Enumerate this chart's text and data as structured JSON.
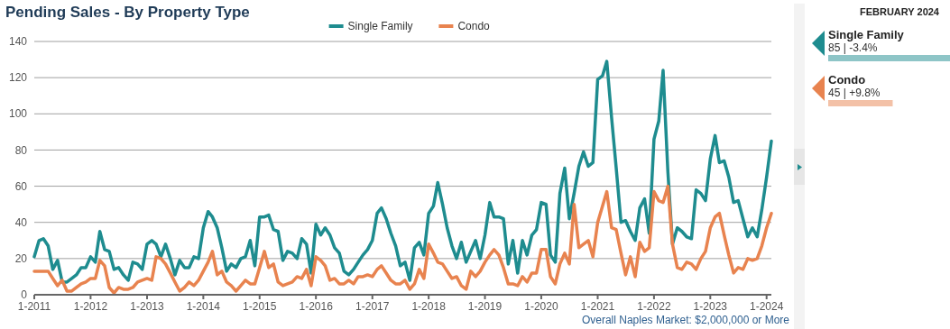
{
  "chart_data": [
    {
      "type": "line",
      "title": "Pending Sales - By Property Type",
      "x": [
        "2011-01",
        "2011-02",
        "2011-03",
        "2011-04",
        "2011-05",
        "2011-06",
        "2011-07",
        "2011-08",
        "2011-09",
        "2011-10",
        "2011-11",
        "2011-12",
        "2012-01",
        "2012-02",
        "2012-03",
        "2012-04",
        "2012-05",
        "2012-06",
        "2012-07",
        "2012-08",
        "2012-09",
        "2012-10",
        "2012-11",
        "2012-12",
        "2013-01",
        "2013-02",
        "2013-03",
        "2013-04",
        "2013-05",
        "2013-06",
        "2013-07",
        "2013-08",
        "2013-09",
        "2013-10",
        "2013-11",
        "2013-12",
        "2014-01",
        "2014-02",
        "2014-03",
        "2014-04",
        "2014-05",
        "2014-06",
        "2014-07",
        "2014-08",
        "2014-09",
        "2014-10",
        "2014-11",
        "2014-12",
        "2015-01",
        "2015-02",
        "2015-03",
        "2015-04",
        "2015-05",
        "2015-06",
        "2015-07",
        "2015-08",
        "2015-09",
        "2015-10",
        "2015-11",
        "2015-12",
        "2016-01",
        "2016-02",
        "2016-03",
        "2016-04",
        "2016-05",
        "2016-06",
        "2016-07",
        "2016-08",
        "2016-09",
        "2016-10",
        "2016-11",
        "2016-12",
        "2017-01",
        "2017-02",
        "2017-03",
        "2017-04",
        "2017-05",
        "2017-06",
        "2017-07",
        "2017-08",
        "2017-09",
        "2017-10",
        "2017-11",
        "2017-12",
        "2018-01",
        "2018-02",
        "2018-03",
        "2018-04",
        "2018-05",
        "2018-06",
        "2018-07",
        "2018-08",
        "2018-09",
        "2018-10",
        "2018-11",
        "2018-12",
        "2019-01",
        "2019-02",
        "2019-03",
        "2019-04",
        "2019-05",
        "2019-06",
        "2019-07",
        "2019-08",
        "2019-09",
        "2019-10",
        "2019-11",
        "2019-12",
        "2020-01",
        "2020-02",
        "2020-03",
        "2020-04",
        "2020-05",
        "2020-06",
        "2020-07",
        "2020-08",
        "2020-09",
        "2020-10",
        "2020-11",
        "2020-12",
        "2021-01",
        "2021-02",
        "2021-03",
        "2021-04",
        "2021-05",
        "2021-06",
        "2021-07",
        "2021-08",
        "2021-09",
        "2021-10",
        "2021-11",
        "2021-12",
        "2022-01",
        "2022-02",
        "2022-03",
        "2022-04",
        "2022-05",
        "2022-06",
        "2022-07",
        "2022-08",
        "2022-09",
        "2022-10",
        "2022-11",
        "2022-12",
        "2023-01",
        "2023-02",
        "2023-03",
        "2023-04",
        "2023-05",
        "2023-06",
        "2023-07",
        "2023-08",
        "2023-09",
        "2023-10",
        "2023-11",
        "2023-12",
        "2024-01",
        "2024-02"
      ],
      "series": [
        {
          "name": "Single Family",
          "color": "#1e8c8f",
          "values": [
            21,
            30,
            31,
            27,
            14,
            19,
            7,
            7,
            9,
            11,
            15,
            15,
            21,
            18,
            35,
            25,
            24,
            14,
            15,
            11,
            8,
            18,
            17,
            14,
            28,
            30,
            28,
            21,
            28,
            20,
            11,
            19,
            15,
            15,
            21,
            20,
            37,
            46,
            43,
            37,
            26,
            13,
            17,
            15,
            20,
            21,
            30,
            16,
            43,
            43,
            44,
            36,
            35,
            19,
            24,
            23,
            20,
            31,
            28,
            12,
            39,
            33,
            37,
            33,
            26,
            23,
            13,
            11,
            14,
            18,
            22,
            25,
            30,
            45,
            48,
            42,
            34,
            27,
            16,
            18,
            8,
            26,
            29,
            22,
            45,
            49,
            62,
            50,
            37,
            27,
            20,
            29,
            18,
            24,
            30,
            20,
            33,
            51,
            43,
            43,
            42,
            17,
            30,
            12,
            30,
            22,
            33,
            36,
            51,
            50,
            22,
            18,
            56,
            70,
            42,
            56,
            71,
            79,
            71,
            73,
            119,
            121,
            129,
            98,
            70,
            40,
            41,
            35,
            30,
            48,
            53,
            34,
            86,
            96,
            124,
            68,
            28,
            37,
            35,
            32,
            31,
            58,
            56,
            52,
            75,
            88,
            73,
            74,
            65,
            51,
            52,
            42,
            32,
            37,
            32,
            47,
            65,
            85
          ]
        },
        {
          "name": "Condo",
          "color": "#e8834f",
          "values": [
            13,
            13,
            13,
            13,
            9,
            5,
            8,
            2,
            2,
            4,
            6,
            7,
            9,
            9,
            19,
            16,
            4,
            1,
            4,
            3,
            3,
            4,
            7,
            8,
            9,
            8,
            21,
            20,
            17,
            12,
            7,
            2,
            4,
            7,
            5,
            8,
            13,
            18,
            24,
            11,
            13,
            7,
            5,
            2,
            5,
            8,
            6,
            6,
            15,
            24,
            15,
            17,
            7,
            5,
            6,
            7,
            10,
            9,
            14,
            5,
            21,
            19,
            16,
            8,
            9,
            6,
            6,
            8,
            6,
            10,
            10,
            11,
            10,
            14,
            16,
            12,
            8,
            6,
            6,
            8,
            3,
            6,
            14,
            9,
            28,
            23,
            18,
            17,
            13,
            9,
            10,
            5,
            3,
            13,
            10,
            13,
            18,
            22,
            25,
            22,
            15,
            6,
            6,
            5,
            10,
            7,
            12,
            12,
            25,
            25,
            10,
            6,
            17,
            23,
            17,
            50,
            26,
            28,
            30,
            21,
            40,
            49,
            57,
            37,
            36,
            23,
            11,
            21,
            10,
            29,
            24,
            26,
            57,
            52,
            51,
            60,
            28,
            15,
            14,
            18,
            17,
            14,
            20,
            24,
            37,
            43,
            45,
            33,
            22,
            12,
            15,
            14,
            20,
            19,
            20,
            27,
            37,
            45
          ]
        }
      ],
      "xlim": [
        "2011-01",
        "2024-02"
      ],
      "xticks": [
        {
          "value": "2011-01",
          "label": "1-2011"
        },
        {
          "value": "2012-01",
          "label": "1-2012"
        },
        {
          "value": "2013-01",
          "label": "1-2013"
        },
        {
          "value": "2014-01",
          "label": "1-2014"
        },
        {
          "value": "2015-01",
          "label": "1-2015"
        },
        {
          "value": "2016-01",
          "label": "1-2016"
        },
        {
          "value": "2017-01",
          "label": "1-2017"
        },
        {
          "value": "2018-01",
          "label": "1-2018"
        },
        {
          "value": "2019-01",
          "label": "1-2019"
        },
        {
          "value": "2020-01",
          "label": "1-2020"
        },
        {
          "value": "2021-01",
          "label": "1-2021"
        },
        {
          "value": "2022-01",
          "label": "1-2022"
        },
        {
          "value": "2023-01",
          "label": "1-2023"
        },
        {
          "value": "2024-01",
          "label": "1-2024"
        }
      ],
      "ylim": [
        0,
        140
      ],
      "yticks": [
        0,
        20,
        40,
        60,
        80,
        100,
        120,
        140
      ],
      "grid": "y",
      "legend": "top",
      "annotations": [
        "Overall Naples Market: $2,000,000 or More"
      ]
    },
    {
      "type": "other",
      "title": "FEBRUARY 2024",
      "categories": [
        "Single Family",
        "Condo"
      ],
      "values": [
        85,
        45
      ],
      "value_labels": [
        "85 | -3.4%",
        "45 | +9.8%"
      ],
      "colors": [
        "#1e8c8f",
        "#e8834f"
      ]
    }
  ]
}
